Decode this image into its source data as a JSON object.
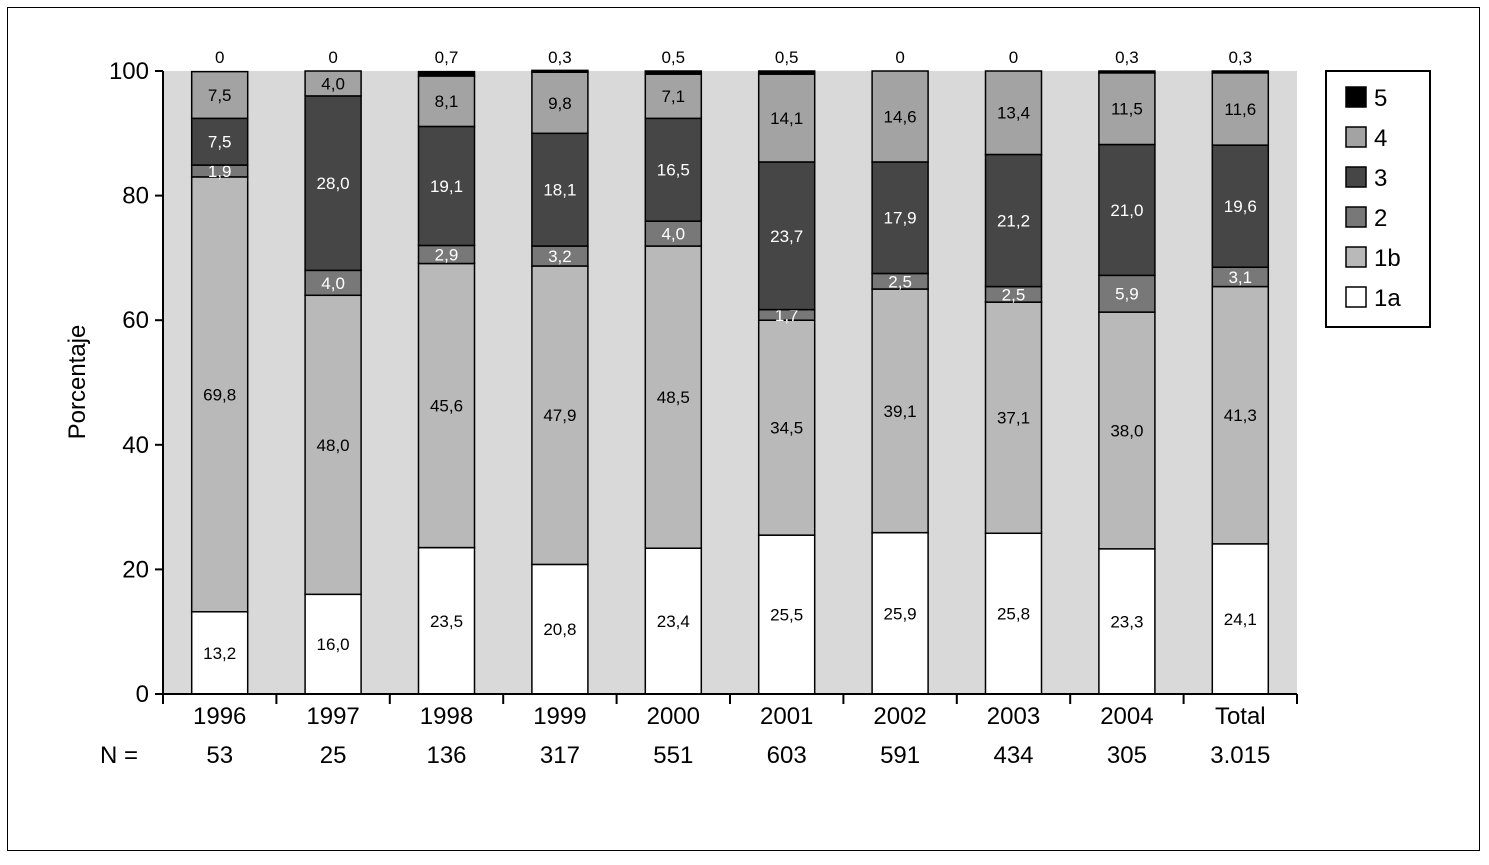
{
  "chart_data": {
    "type": "bar",
    "stacked": true,
    "ylabel": "Porcentaje",
    "ylim": [
      0,
      100
    ],
    "yticks": [
      0,
      20,
      40,
      60,
      80,
      100
    ],
    "categories": [
      "1996",
      "1997",
      "1998",
      "1999",
      "2000",
      "2001",
      "2002",
      "2003",
      "2004",
      "Total"
    ],
    "n_prefix": "N =",
    "n_values": [
      "53",
      "25",
      "136",
      "317",
      "551",
      "603",
      "591",
      "434",
      "305",
      "3.015"
    ],
    "series": [
      {
        "name": "1a",
        "color": "#ffffff",
        "values": [
          13.2,
          16.0,
          23.5,
          20.8,
          23.4,
          25.5,
          25.9,
          25.8,
          23.3,
          24.1
        ],
        "labels": [
          "13,2",
          "16,0",
          "23,5",
          "20,8",
          "23,4",
          "25,5",
          "25,9",
          "25,8",
          "23,3",
          "24,1"
        ]
      },
      {
        "name": "1b",
        "color": "#b9b9b9",
        "values": [
          69.8,
          48.0,
          45.6,
          47.9,
          48.5,
          34.5,
          39.1,
          37.1,
          38.0,
          41.3
        ],
        "labels": [
          "69,8",
          "48,0",
          "45,6",
          "47,9",
          "48,5",
          "34,5",
          "39,1",
          "37,1",
          "38,0",
          "41,3"
        ]
      },
      {
        "name": "2",
        "color": "#787878",
        "values": [
          1.9,
          4.0,
          2.9,
          3.2,
          4.0,
          1.7,
          2.5,
          2.5,
          5.9,
          3.1
        ],
        "labels": [
          "1,9",
          "4,0",
          "2,9",
          "3,2",
          "4,0",
          "1,7",
          "2,5",
          "2,5",
          "5,9",
          "3,1"
        ]
      },
      {
        "name": "3",
        "color": "#464646",
        "values": [
          7.5,
          28.0,
          19.1,
          18.1,
          16.5,
          23.7,
          17.9,
          21.2,
          21.0,
          19.6
        ],
        "labels": [
          "7,5",
          "28,0",
          "19,1",
          "18,1",
          "16,5",
          "23,7",
          "17,9",
          "21,2",
          "21,0",
          "19,6"
        ]
      },
      {
        "name": "4",
        "color": "#a3a3a3",
        "values": [
          7.5,
          4.0,
          8.1,
          9.8,
          7.1,
          14.1,
          14.6,
          13.4,
          11.5,
          11.6
        ],
        "labels": [
          "7,5",
          "4,0",
          "8,1",
          "9,8",
          "7,1",
          "14,1",
          "14,6",
          "13,4",
          "11,5",
          "11,6"
        ]
      },
      {
        "name": "5",
        "color": "#000000",
        "values": [
          0,
          0,
          0.7,
          0.3,
          0.5,
          0.5,
          0,
          0,
          0.3,
          0.3
        ],
        "labels": [
          "0",
          "0",
          "0,7",
          "0,3",
          "0,5",
          "0,5",
          "0",
          "0",
          "0,3",
          "0,3"
        ]
      }
    ],
    "legend": {
      "position": "right",
      "order": [
        "5",
        "4",
        "3",
        "2",
        "1b",
        "1a"
      ]
    },
    "plot_background": "#d9d9d9",
    "grid": false
  }
}
